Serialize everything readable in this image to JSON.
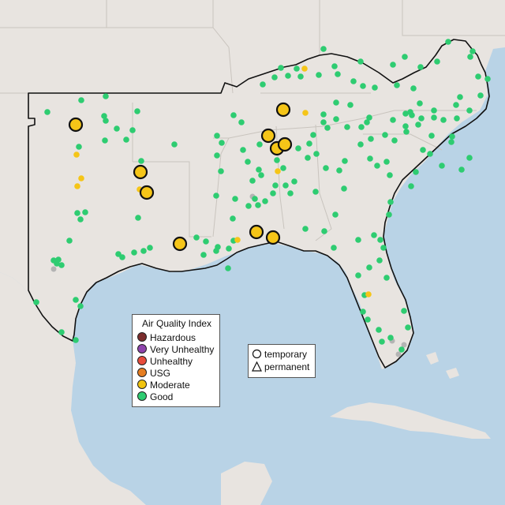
{
  "colors": {
    "ocean": "#b9d3e6",
    "land": "#e8e4e0",
    "state_line": "#c9c4be",
    "region_outline": "#111111",
    "good": "#2ecc71",
    "moderate": "#f5c518",
    "missing": "#b4b4b4"
  },
  "legend": {
    "title": "Air Quality Index",
    "items": [
      {
        "label": "Hazardous",
        "color": "#7b2d2d"
      },
      {
        "label": "Very Unhealthy",
        "color": "#8e44ad"
      },
      {
        "label": "Unhealthy",
        "color": "#e74c3c"
      },
      {
        "label": "USG",
        "color": "#e67e22"
      },
      {
        "label": "Moderate",
        "color": "#f1c40f"
      },
      {
        "label": "Good",
        "color": "#2ecc71"
      }
    ]
  },
  "monitor_types": {
    "temporary": "temporary",
    "permanent": "permanent"
  }
}
